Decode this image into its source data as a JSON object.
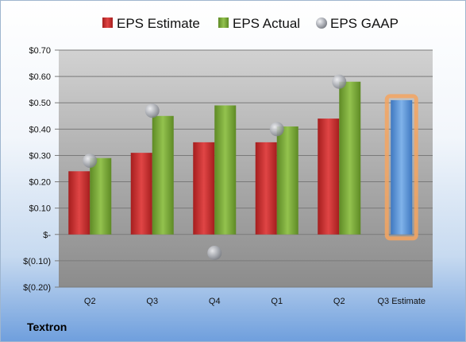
{
  "company": "Textron",
  "colors": {
    "estimate": "#cc2f2f",
    "actual": "#7fac3c",
    "gaap": "#b9bcc4",
    "future_estimate": "#5d95d6",
    "highlight": "#f4a460"
  },
  "chart_data": {
    "type": "bar",
    "categories": [
      "Q2",
      "Q3",
      "Q4",
      "Q1",
      "Q2",
      "Q3 Estimate"
    ],
    "series": [
      {
        "name": "EPS Estimate",
        "values": [
          0.24,
          0.31,
          0.35,
          0.35,
          0.44,
          0.51
        ]
      },
      {
        "name": "EPS Actual",
        "values": [
          0.29,
          0.45,
          0.49,
          0.41,
          0.58,
          null
        ]
      },
      {
        "name": "EPS GAAP",
        "values": [
          0.28,
          0.47,
          -0.07,
          0.4,
          0.58,
          null
        ]
      }
    ],
    "y_ticks": [
      "$0.70",
      "$0.60",
      "$0.50",
      "$0.40",
      "$0.30",
      "$0.20",
      "$0.10",
      "$-",
      "$(0.10)",
      "$(0.20)"
    ],
    "ylim": [
      -0.2,
      0.7
    ],
    "highlighted_category": "Q3 Estimate",
    "legend_position": "top",
    "grid": true
  }
}
